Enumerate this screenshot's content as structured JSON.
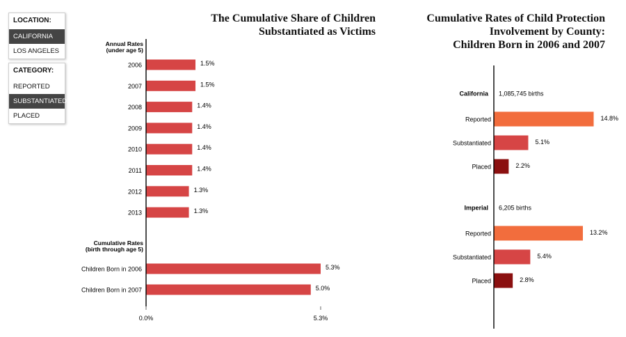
{
  "location_panel": {
    "header": "LOCATION:",
    "items": [
      {
        "label": "CALIFORNIA",
        "active": true
      },
      {
        "label": "LOS ANGELES",
        "active": false
      }
    ]
  },
  "category_panel": {
    "header": "CATEGORY:",
    "items": [
      {
        "label": "REPORTED",
        "active": false
      },
      {
        "label": "SUBSTANTIATED",
        "active": true
      },
      {
        "label": "PLACED",
        "active": false
      }
    ]
  },
  "colors": {
    "bar": "#d64545",
    "reported": "#f26d3d",
    "substantiated": "#d64545",
    "placed": "#8b1010",
    "axis": "#000000",
    "panel_active_bg": "#444444"
  },
  "chart_data": [
    {
      "type": "bar",
      "orientation": "horizontal",
      "title_lines": [
        "The Cumulative Share of Children",
        "Substantiated as Victims"
      ],
      "groups": [
        {
          "label_lines": [
            "Annual Rates",
            "(under age 5)"
          ],
          "categories": [
            "2006",
            "2007",
            "2008",
            "2009",
            "2010",
            "2011",
            "2012",
            "2013"
          ],
          "values": [
            1.5,
            1.5,
            1.4,
            1.4,
            1.4,
            1.4,
            1.3,
            1.3
          ],
          "value_labels": [
            "1.5%",
            "1.5%",
            "1.4%",
            "1.4%",
            "1.4%",
            "1.4%",
            "1.3%",
            "1.3%"
          ]
        },
        {
          "label_lines": [
            "Cumulative Rates",
            "(birth through age 5)"
          ],
          "categories": [
            "Children Born in 2006",
            "Children Born in 2007"
          ],
          "values": [
            5.3,
            5.0
          ],
          "value_labels": [
            "5.3%",
            "5.0%"
          ]
        }
      ],
      "xlim": [
        0,
        5.3
      ],
      "xticks": [
        "0.0%",
        "5.3%"
      ]
    },
    {
      "type": "bar",
      "orientation": "horizontal",
      "title_lines": [
        "Cumulative Rates of Child Protection",
        "Involvement by County:",
        "Children Born in 2006 and 2007"
      ],
      "xlim": [
        0,
        16.5
      ],
      "groups": [
        {
          "name": "California",
          "births": "1,085,745 births",
          "categories": [
            "Reported",
            "Substantiated",
            "Placed"
          ],
          "values": [
            14.8,
            5.1,
            2.2
          ],
          "value_labels": [
            "14.8%",
            "5.1%",
            "2.2%"
          ],
          "color_keys": [
            "reported",
            "substantiated",
            "placed"
          ]
        },
        {
          "name": "Imperial",
          "births": "6,205 births",
          "categories": [
            "Reported",
            "Substantiated",
            "Placed"
          ],
          "values": [
            13.2,
            5.4,
            2.8
          ],
          "value_labels": [
            "13.2%",
            "5.4%",
            "2.8%"
          ],
          "color_keys": [
            "reported",
            "substantiated",
            "placed"
          ]
        }
      ]
    }
  ]
}
